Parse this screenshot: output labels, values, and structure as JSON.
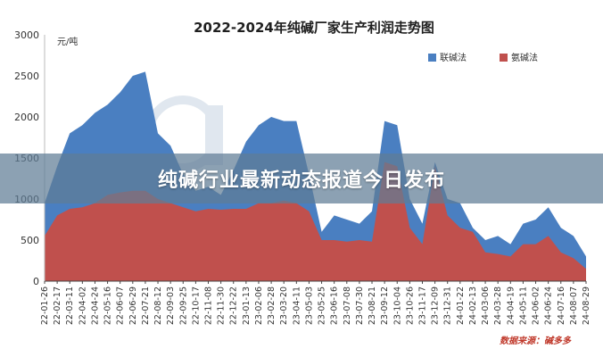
{
  "banner": {
    "text": "纯碱行业最新动态报道今日发布"
  },
  "chart_data": {
    "type": "area",
    "title": "2022-2024年纯碱厂家生产利润走势图",
    "unit_label": "元/吨",
    "ylim": [
      0,
      3000
    ],
    "yticks": [
      0,
      500,
      1000,
      1500,
      2000,
      2500,
      3000
    ],
    "grid": false,
    "legend_position": "top-right",
    "source": "数据来源：碱多多",
    "colors": {
      "lianjian": "#4a7fc1",
      "anjian": "#c0504d"
    },
    "x_ticks": [
      "22-01-26",
      "22-02-17",
      "22-03-11",
      "22-04-02",
      "22-04-24",
      "22-05-16",
      "22-06-07",
      "22-06-29",
      "22-07-21",
      "22-08-12",
      "22-09-03",
      "22-09-25",
      "22-10-17",
      "22-11-08",
      "22-11-30",
      "22-12-22",
      "23-01-13",
      "23-02-06",
      "23-02-28",
      "23-03-20",
      "23-04-11",
      "23-05-03",
      "23-05-25",
      "23-06-16",
      "23-07-08",
      "23-07-30",
      "23-08-21",
      "23-09-12",
      "23-10-04",
      "23-10-26",
      "23-11-17",
      "23-12-09",
      "23-12-31",
      "24-01-22",
      "24-02-13",
      "24-03-06",
      "24-03-28",
      "24-04-19",
      "24-05-11",
      "24-06-02",
      "24-06-24",
      "24-07-16",
      "24-08-07",
      "24-08-29"
    ],
    "series": [
      {
        "name": "联碱法",
        "key": "lianjian",
        "values": [
          950,
          1400,
          1800,
          1900,
          2050,
          2150,
          2300,
          2500,
          2550,
          1800,
          1650,
          1300,
          1100,
          1150,
          1050,
          1350,
          1700,
          1900,
          2000,
          1950,
          1950,
          1300,
          600,
          800,
          750,
          700,
          850,
          1950,
          1900,
          1000,
          700,
          1450,
          1000,
          950,
          650,
          500,
          550,
          450,
          700,
          750,
          900,
          650,
          550,
          300
        ]
      },
      {
        "name": "氨碱法",
        "key": "anjian",
        "values": [
          550,
          800,
          880,
          900,
          950,
          1050,
          1080,
          1100,
          1100,
          1000,
          950,
          900,
          850,
          880,
          870,
          880,
          880,
          950,
          950,
          980,
          950,
          850,
          500,
          500,
          480,
          500,
          480,
          1450,
          1400,
          650,
          450,
          1400,
          800,
          650,
          600,
          350,
          330,
          300,
          450,
          450,
          550,
          350,
          280,
          150
        ]
      }
    ]
  }
}
